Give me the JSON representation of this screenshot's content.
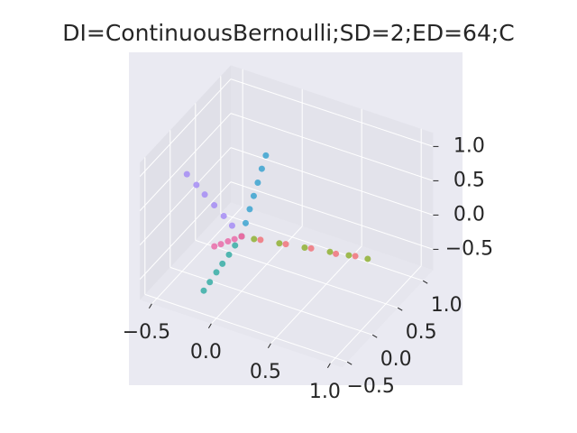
{
  "chart_data": {
    "type": "scatter3d",
    "title": "DI=ContinuousBernoulli;SD=2;ED=64;C",
    "xlim": [
      -0.6,
      1.1
    ],
    "ylim": [
      -0.6,
      1.2
    ],
    "zlim": [
      -0.8,
      1.2
    ],
    "xticks": [
      {
        "value": -0.5,
        "label": "−0.5"
      },
      {
        "value": 0,
        "label": "0.0"
      },
      {
        "value": 0.5,
        "label": "0.5"
      },
      {
        "value": 1,
        "label": "1.0"
      }
    ],
    "yticks": [
      {
        "value": -0.5,
        "label": "−0.5"
      },
      {
        "value": 0,
        "label": "0.0"
      },
      {
        "value": 0.5,
        "label": "0.5"
      },
      {
        "value": 1,
        "label": "1.0"
      }
    ],
    "zticks": [
      {
        "value": -0.5,
        "label": "−0.5"
      },
      {
        "value": 0,
        "label": "0.0"
      },
      {
        "value": 0.5,
        "label": "0.5"
      },
      {
        "value": 1,
        "label": "1.0"
      }
    ],
    "grid": true,
    "series": [
      {
        "color": "#a48cf4",
        "x": [
          0,
          -0.08,
          -0.15,
          -0.23,
          -0.31,
          -0.38,
          -0.46
        ],
        "y": [
          0,
          0,
          0,
          0,
          0,
          0,
          0
        ],
        "z": [
          0,
          0.11,
          0.21,
          0.32,
          0.43,
          0.53,
          0.64
        ]
      },
      {
        "color": "#3ba3d0",
        "x": [
          0,
          0,
          0,
          0,
          0,
          0,
          0
        ],
        "y": [
          0,
          0.08,
          0.16,
          0.24,
          0.32,
          0.4,
          0.48
        ],
        "z": [
          0,
          0.13,
          0.27,
          0.4,
          0.53,
          0.67,
          0.8
        ]
      },
      {
        "color": "#36ada4",
        "x": [
          0,
          0,
          0,
          0,
          0,
          0,
          0
        ],
        "y": [
          0,
          -0.13,
          -0.25,
          -0.38,
          -0.5,
          -0.63,
          -0.75
        ],
        "z": [
          0,
          -0.03,
          -0.07,
          -0.1,
          -0.13,
          -0.17,
          -0.2
        ]
      },
      {
        "color": "#8fb032",
        "x": [
          0.1,
          0.3,
          0.5,
          0.7,
          0.85,
          1.0
        ],
        "y": [
          0.01,
          0.04,
          0.07,
          0.1,
          0.12,
          0.14
        ],
        "z": [
          0.01,
          0.04,
          0.07,
          0.1,
          0.12,
          0.14
        ]
      },
      {
        "color": "#f0737a",
        "x": [
          0,
          0.15,
          0.35,
          0.55,
          0.75,
          0.9
        ],
        "y": [
          0,
          0.02,
          0.05,
          0.08,
          0.1,
          0.13
        ],
        "z": [
          0,
          0.02,
          0.05,
          0.08,
          0.1,
          0.13
        ]
      },
      {
        "color": "#e96ba8",
        "x": [
          0,
          0,
          0,
          0,
          0
        ],
        "y": [
          0,
          -0.14,
          -0.27,
          -0.41,
          -0.54
        ],
        "z": [
          0,
          0.07,
          0.14,
          0.21,
          0.28
        ]
      }
    ]
  }
}
